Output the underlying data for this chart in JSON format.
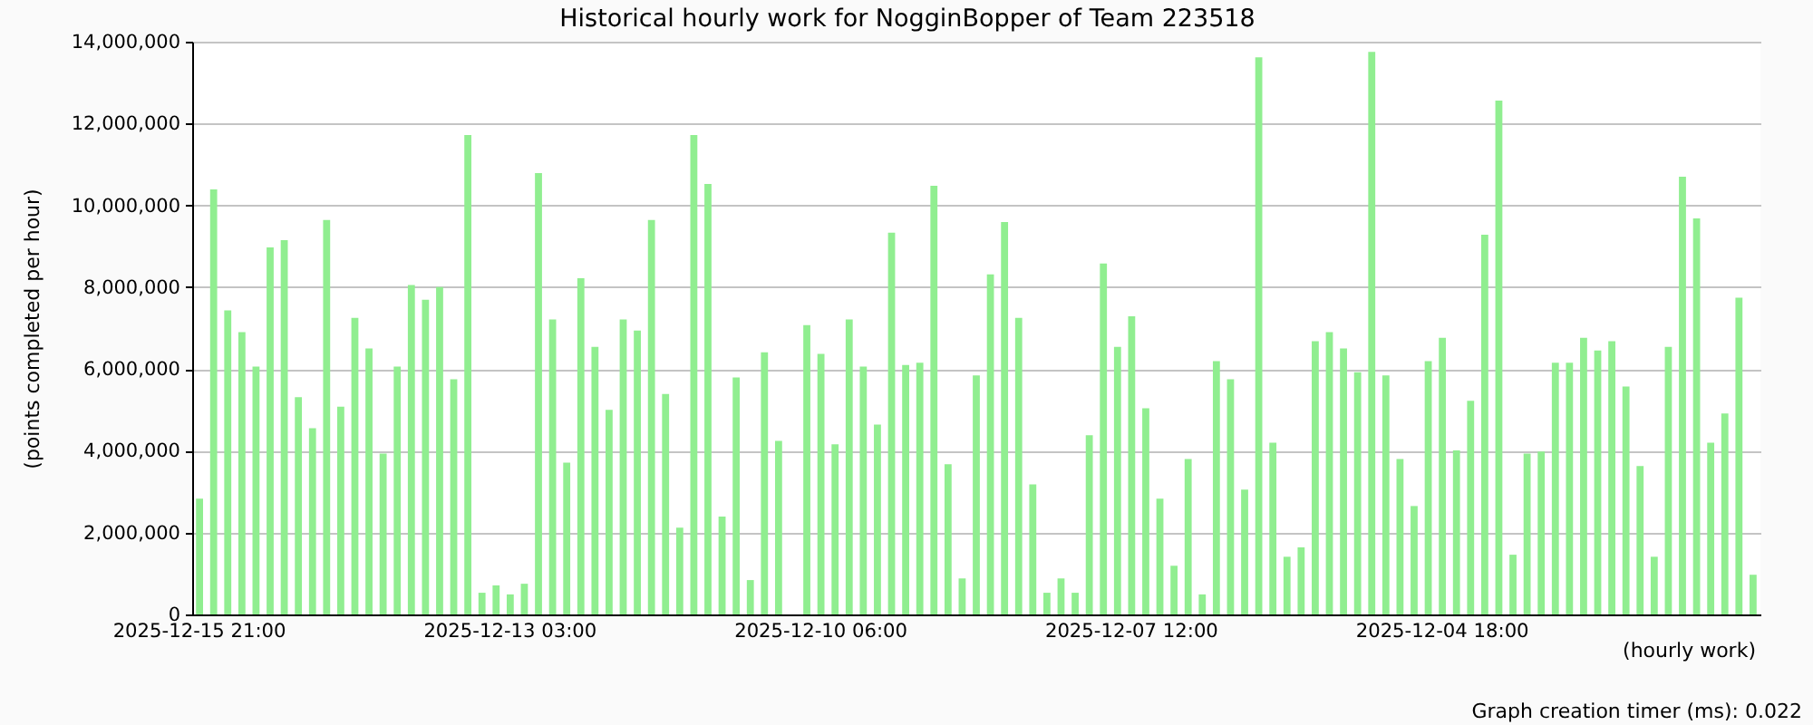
{
  "chart_data": {
    "type": "bar",
    "title": "Historical hourly work for NogginBopper of Team 223518",
    "xlabel": "(hourly work)",
    "ylabel": "(points completed per hour)",
    "categories": [
      "2025-12-15 21:00",
      null,
      null,
      null,
      null,
      null,
      null,
      null,
      null,
      null,
      null,
      null,
      null,
      null,
      null,
      null,
      null,
      null,
      null,
      null,
      null,
      null,
      "2025-12-13 03:00",
      null,
      null,
      null,
      null,
      null,
      null,
      null,
      null,
      null,
      null,
      null,
      null,
      null,
      null,
      null,
      null,
      null,
      null,
      null,
      null,
      null,
      "2025-12-10 06:00",
      null,
      null,
      null,
      null,
      null,
      null,
      null,
      null,
      null,
      null,
      null,
      null,
      null,
      null,
      null,
      null,
      null,
      null,
      null,
      null,
      null,
      "2025-12-07 12:00",
      null,
      null,
      null,
      null,
      null,
      null,
      null,
      null,
      null,
      null,
      null,
      null,
      null,
      null,
      null,
      null,
      null,
      null,
      null,
      null,
      null,
      "2025-12-04 18:00",
      null,
      null,
      null,
      null,
      null,
      null,
      null,
      null,
      null,
      null,
      null,
      null,
      null,
      null,
      null,
      null,
      null,
      null,
      null,
      null,
      null,
      null
    ],
    "values": [
      2830000,
      10390000,
      7430000,
      6900000,
      6060000,
      8970000,
      9150000,
      5310000,
      4550000,
      9640000,
      5080000,
      7250000,
      6500000,
      3930000,
      6060000,
      8050000,
      7690000,
      8000000,
      5750000,
      11720000,
      530000,
      710000,
      490000,
      750000,
      10790000,
      7210000,
      3710000,
      8220000,
      6540000,
      5000000,
      7210000,
      6940000,
      9640000,
      5390000,
      2120000,
      11720000,
      10520000,
      2390000,
      5790000,
      840000,
      6410000,
      4240000,
      null,
      7070000,
      6370000,
      4160000,
      7210000,
      6060000,
      4640000,
      9330000,
      6100000,
      6150000,
      10480000,
      3670000,
      880000,
      5840000,
      8310000,
      9590000,
      7250000,
      3180000,
      530000,
      880000,
      530000,
      4380000,
      8580000,
      6540000,
      7290000,
      5040000,
      2830000,
      1190000,
      3800000,
      490000,
      6190000,
      5750000,
      3050000,
      13620000,
      4200000,
      1410000,
      1640000,
      6680000,
      6900000,
      6500000,
      5920000,
      13750000,
      5840000,
      3800000,
      2650000,
      6190000,
      6760000,
      4010000,
      5220000,
      9280000,
      12560000,
      1460000,
      3930000,
      3980000,
      6150000,
      6150000,
      6760000,
      6450000,
      6680000,
      5570000,
      3630000,
      1410000,
      6540000,
      10700000,
      9680000,
      4200000,
      4910000,
      7740000,
      970000
    ],
    "color": "#90ee90",
    "ylim": [
      0,
      14000000
    ],
    "yticks": [
      0,
      {
        "value": 2000000,
        "label": "2,000,000"
      },
      {
        "value": 4000000,
        "label": "4,000,000"
      },
      {
        "value": 6000000,
        "label": "6,000,000"
      },
      {
        "value": 8000000,
        "label": "8,000,000"
      },
      {
        "value": 10000000,
        "label": "10,000,000"
      },
      {
        "value": 12000000,
        "label": "12,000,000"
      },
      {
        "value": 14000000,
        "label": "14,000,000"
      }
    ],
    "grid": "y",
    "annotations": [
      "Graph creation timer (ms): 0.022"
    ]
  }
}
